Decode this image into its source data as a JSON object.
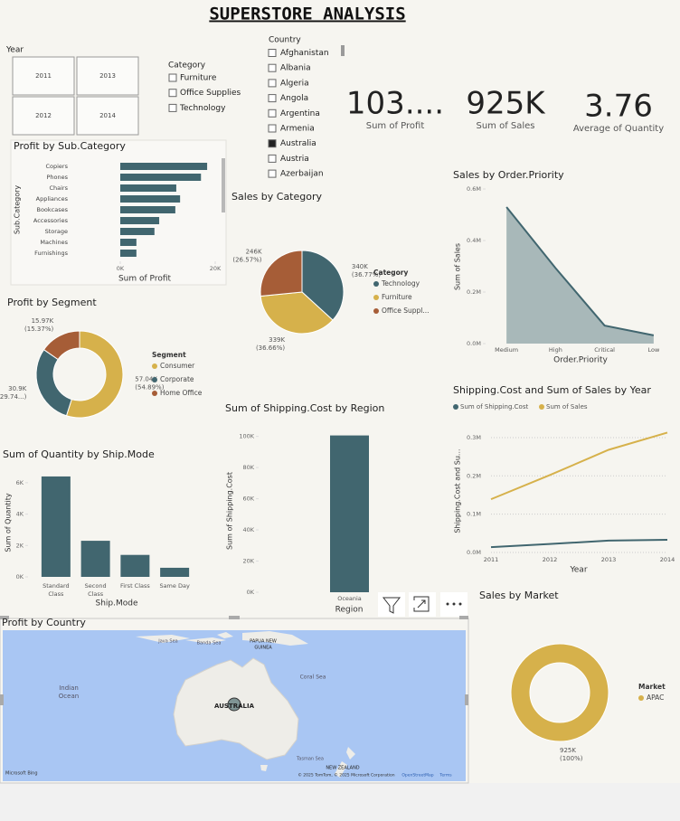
{
  "header": {
    "title": "SUPERSTORE ANALYSIS"
  },
  "slicers": {
    "year": {
      "title": "Year",
      "options": [
        "2011",
        "2013",
        "2012",
        "2014"
      ]
    },
    "category": {
      "title": "Category",
      "options": [
        "Furniture",
        "Office Supplies",
        "Technology"
      ]
    },
    "country": {
      "title": "Country",
      "options": [
        "Afghanistan",
        "Albania",
        "Algeria",
        "Angola",
        "Argentina",
        "Armenia",
        "Australia",
        "Austria",
        "Azerbaijan"
      ],
      "checked": [
        false,
        false,
        false,
        false,
        false,
        false,
        true,
        false,
        false
      ]
    }
  },
  "cards": [
    {
      "value": "103....",
      "label": "Sum of Profit"
    },
    {
      "value": "925K",
      "label": "Sum of Sales"
    },
    {
      "value": "3.76",
      "label": "Average of Quantity"
    }
  ],
  "chart_data": [
    {
      "type": "bar",
      "orientation": "horizontal",
      "title": "Profit by Sub.Category",
      "categories": [
        "Copiers",
        "Phones",
        "Chairs",
        "Appliances",
        "Bookcases",
        "Accessories",
        "Storage",
        "Machines",
        "Furnishings"
      ],
      "values": [
        18300,
        17000,
        11800,
        12600,
        11600,
        8200,
        7200,
        3400,
        3400
      ],
      "color": "#41666f",
      "xlim": [
        0,
        20000
      ],
      "xticks": [
        {
          "value": 0,
          "label": "0K"
        },
        {
          "value": 20000,
          "label": "20K"
        }
      ],
      "x_label": "Sum of Profit",
      "y_label": "Sub.Category"
    },
    {
      "type": "pie",
      "title": "Sales by Category",
      "categories": [
        "Technology",
        "Furniture",
        "Office Suppl..."
      ],
      "values": [
        340000,
        339000,
        246000
      ],
      "value_labels": [
        "340K",
        "339K",
        "246K"
      ],
      "percents": [
        36.77,
        36.66,
        26.57
      ],
      "percent_labels": [
        "(36.77%)",
        "(36.66%)",
        "(26.57%)"
      ],
      "colors": [
        "#41666f",
        "#d6b14b",
        "#a65d37"
      ],
      "legend_title": "Category"
    },
    {
      "type": "donut",
      "title": "Profit by Segment",
      "categories": [
        "Consumer",
        "Corporate",
        "Home Office"
      ],
      "values": [
        57040,
        30900,
        15970
      ],
      "value_labels": [
        "57.04K",
        "30.9K",
        "15.97K"
      ],
      "percents": [
        54.89,
        29.74,
        15.37
      ],
      "percent_labels": [
        "(54.89%)",
        "(29.74...)",
        "(15.37%)"
      ],
      "colors": [
        "#d6b14b",
        "#41666f",
        "#a65d37"
      ],
      "legend_title": "Segment"
    },
    {
      "type": "bar",
      "title": "Sum of Quantity by Ship.Mode",
      "categories": [
        "Standard Class",
        "Second Class",
        "First Class",
        "Same Day"
      ],
      "values": [
        6400,
        2300,
        1400,
        580
      ],
      "color": "#41666f",
      "ylim": [
        0,
        6800
      ],
      "yticks": [
        {
          "value": 0,
          "label": "0K"
        },
        {
          "value": 2000,
          "label": "2K"
        },
        {
          "value": 4000,
          "label": "4K"
        },
        {
          "value": 6000,
          "label": "6K"
        }
      ],
      "x_label": "Ship.Mode",
      "y_label": "Sum of Quantity"
    },
    {
      "type": "bar",
      "title": "Sum of Shipping.Cost by Region",
      "categories": [
        "Oceania"
      ],
      "values": [
        100600
      ],
      "color": "#41666f",
      "ylim": [
        0,
        105000
      ],
      "yticks": [
        {
          "value": 0,
          "label": "0K"
        },
        {
          "value": 20000,
          "label": "20K"
        },
        {
          "value": 40000,
          "label": "40K"
        },
        {
          "value": 60000,
          "label": "60K"
        },
        {
          "value": 80000,
          "label": "80K"
        },
        {
          "value": 100000,
          "label": "100K"
        }
      ],
      "x_label": "Region",
      "y_label": "Sum of Shipping.Cost"
    },
    {
      "type": "area",
      "title": "Sales by Order.Priority",
      "categories": [
        "Medium",
        "High",
        "Critical",
        "Low"
      ],
      "values": [
        530000,
        293000,
        70000,
        32000
      ],
      "color": "#41666f",
      "fill": "#a8b8b9",
      "ylim": [
        0,
        600000
      ],
      "yticks": [
        {
          "value": 0,
          "label": "0.0M"
        },
        {
          "value": 200000,
          "label": "0.2M"
        },
        {
          "value": 400000,
          "label": "0.4M"
        },
        {
          "value": 600000,
          "label": "0.6M"
        }
      ],
      "x_label": "Order.Priority",
      "y_label": "Sum of Sales"
    },
    {
      "type": "line",
      "title": "Shipping.Cost and Sum of Sales by Year",
      "categories": [
        "2011",
        "2012",
        "2013",
        "2014"
      ],
      "series": [
        {
          "name": "Sum of Shipping.Cost",
          "color": "#41666f",
          "values": [
            14000,
            22000,
            31000,
            33000
          ]
        },
        {
          "name": "Sum of Sales",
          "color": "#d6b14b",
          "values": [
            139000,
            202000,
            268000,
            313000
          ]
        }
      ],
      "ylim": [
        0,
        340000
      ],
      "yticks": [
        {
          "value": 0,
          "label": "0.0M"
        },
        {
          "value": 100000,
          "label": "0.1M"
        },
        {
          "value": 200000,
          "label": "0.2M"
        },
        {
          "value": 300000,
          "label": "0.3M"
        }
      ],
      "grid": true,
      "x_label": "Year",
      "y_label": "Shipping.Cost and Su..."
    },
    {
      "type": "donut",
      "title": "Sales by Market",
      "categories": [
        "APAC"
      ],
      "values": [
        925000
      ],
      "value_labels": [
        "925K"
      ],
      "percents": [
        100
      ],
      "percent_labels": [
        "(100%)"
      ],
      "colors": [
        "#d6b14b"
      ],
      "legend_title": "Market"
    }
  ],
  "map": {
    "title": "Profit by Country",
    "labels": [
      "Java Sea",
      "Banda Sea",
      "PAPUA NEW",
      "GUINEA",
      "Indian",
      "Ocean",
      "Coral Sea",
      "AUSTRALIA",
      "Tasman Sea",
      "NEW ZEALAND"
    ],
    "attribution": "© 2025 TomTom, © 2025 Microsoft Corporation",
    "osm": "OpenStreetMap",
    "terms": "Terms",
    "brand": "Microsoft Bing"
  }
}
